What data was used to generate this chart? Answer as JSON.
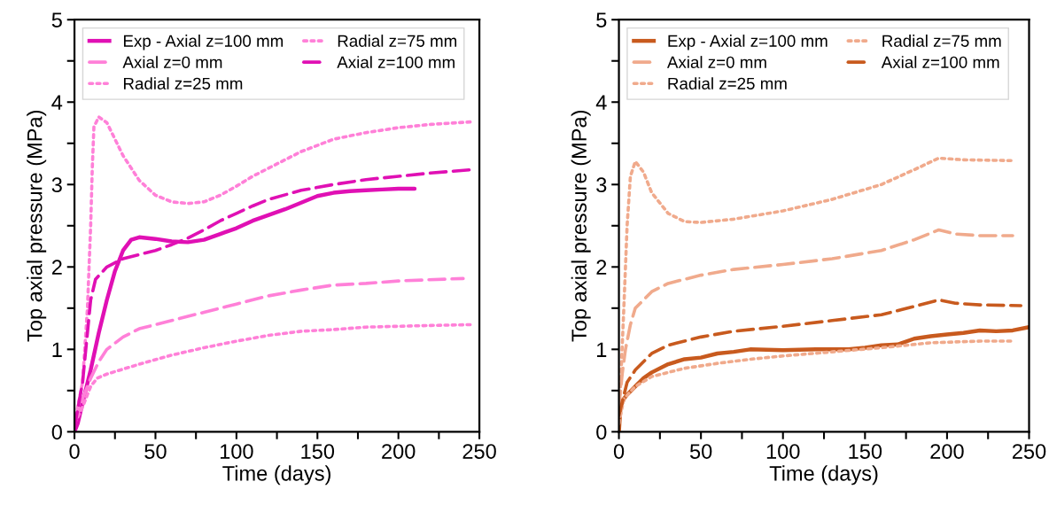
{
  "chart_data": [
    {
      "type": "line",
      "xlabel": "Time (days)",
      "ylabel": "Top axial pressure (MPa)",
      "xlim": [
        0,
        250
      ],
      "ylim": [
        0,
        5
      ],
      "xticks": [
        0,
        {
          "value": 25,
          "label": null
        },
        50,
        {
          "value": 75,
          "label": null
        },
        100,
        {
          "value": 125,
          "label": null
        },
        150,
        {
          "value": 175,
          "label": null
        },
        200,
        {
          "value": 225,
          "label": null
        },
        250
      ],
      "yticks": [
        0,
        {
          "value": 0.5,
          "label": null
        },
        1,
        {
          "value": 1.5,
          "label": null
        },
        2,
        {
          "value": 2.5,
          "label": null
        },
        3,
        {
          "value": 3.5,
          "label": null
        },
        4,
        {
          "value": 4.5,
          "label": null
        },
        5
      ],
      "grid": false,
      "legend": "top left",
      "series": [
        {
          "name": "Exp - Axial z=100 mm",
          "color": "#e010b4",
          "line_style": "solid",
          "x": [
            0,
            2,
            5,
            10,
            15,
            20,
            25,
            30,
            35,
            40,
            50,
            60,
            70,
            80,
            90,
            100,
            110,
            120,
            130,
            140,
            150,
            160,
            170,
            180,
            190,
            200,
            210
          ],
          "values": [
            0,
            0.1,
            0.35,
            0.75,
            1.2,
            1.6,
            1.95,
            2.2,
            2.33,
            2.36,
            2.34,
            2.31,
            2.3,
            2.33,
            2.4,
            2.47,
            2.56,
            2.63,
            2.7,
            2.78,
            2.86,
            2.9,
            2.92,
            2.93,
            2.94,
            2.95,
            2.95
          ]
        },
        {
          "name": "Axial z=0 mm",
          "color": "#ff80d8",
          "line_style": "dashed",
          "x": [
            0,
            5,
            10,
            15,
            20,
            30,
            40,
            60,
            80,
            100,
            120,
            140,
            160,
            180,
            200,
            240
          ],
          "values": [
            0.1,
            0.4,
            0.65,
            0.85,
            1.0,
            1.15,
            1.25,
            1.35,
            1.45,
            1.55,
            1.65,
            1.72,
            1.78,
            1.8,
            1.83,
            1.86
          ]
        },
        {
          "name": "Radial z=25 mm",
          "color": "#ff80d8",
          "line_style": "dotted",
          "x": [
            0,
            5,
            10,
            14,
            20,
            40,
            60,
            80,
            100,
            120,
            140,
            160,
            180,
            200,
            220,
            245
          ],
          "values": [
            0.1,
            0.3,
            0.55,
            0.65,
            0.7,
            0.82,
            0.93,
            1.02,
            1.1,
            1.17,
            1.22,
            1.24,
            1.27,
            1.28,
            1.29,
            1.3
          ]
        },
        {
          "name": "Radial z=75 mm",
          "color": "#ff80d8",
          "line_style": "dotted",
          "x": [
            0,
            5,
            8,
            10,
            11,
            12,
            15,
            20,
            25,
            30,
            40,
            50,
            60,
            70,
            80,
            90,
            100,
            110,
            120,
            140,
            160,
            180,
            200,
            220,
            245
          ],
          "values": [
            0.1,
            0.6,
            1.5,
            2.5,
            3.2,
            3.7,
            3.82,
            3.75,
            3.55,
            3.35,
            3.05,
            2.87,
            2.79,
            2.77,
            2.79,
            2.87,
            2.98,
            3.1,
            3.2,
            3.4,
            3.55,
            3.63,
            3.69,
            3.73,
            3.76
          ]
        },
        {
          "name": "Axial z=100 mm",
          "color": "#e010b4",
          "line_style": "dashed",
          "x": [
            0,
            5,
            8,
            10,
            13,
            20,
            30,
            40,
            50,
            60,
            70,
            80,
            90,
            100,
            110,
            120,
            140,
            160,
            180,
            200,
            220,
            245
          ],
          "values": [
            0.05,
            0.6,
            1.2,
            1.6,
            1.85,
            2.0,
            2.1,
            2.15,
            2.2,
            2.27,
            2.35,
            2.45,
            2.56,
            2.65,
            2.74,
            2.82,
            2.93,
            3.0,
            3.06,
            3.1,
            3.14,
            3.18
          ]
        }
      ]
    },
    {
      "type": "line",
      "xlabel": "Time (days)",
      "ylabel": "Top axial pressure (MPa)",
      "xlim": [
        0,
        250
      ],
      "ylim": [
        0,
        5
      ],
      "xticks": [
        0,
        {
          "value": 25,
          "label": null
        },
        50,
        {
          "value": 75,
          "label": null
        },
        100,
        {
          "value": 125,
          "label": null
        },
        150,
        {
          "value": 175,
          "label": null
        },
        200,
        {
          "value": 225,
          "label": null
        },
        250
      ],
      "yticks": [
        0,
        {
          "value": 0.5,
          "label": null
        },
        1,
        {
          "value": 1.5,
          "label": null
        },
        2,
        {
          "value": 2.5,
          "label": null
        },
        3,
        {
          "value": 3.5,
          "label": null
        },
        4,
        {
          "value": 4.5,
          "label": null
        },
        5
      ],
      "grid": false,
      "legend": "top left",
      "series": [
        {
          "name": "Exp - Axial z=100 mm",
          "color": "#c85a1e",
          "line_style": "solid",
          "x": [
            0,
            1,
            3,
            5,
            10,
            15,
            20,
            30,
            40,
            50,
            60,
            70,
            80,
            100,
            120,
            140,
            150,
            160,
            170,
            180,
            190,
            200,
            210,
            220,
            230,
            240,
            250
          ],
          "values": [
            0,
            0.3,
            0.4,
            0.45,
            0.55,
            0.65,
            0.72,
            0.82,
            0.88,
            0.9,
            0.95,
            0.97,
            1.0,
            0.99,
            1.0,
            1.0,
            1.02,
            1.05,
            1.06,
            1.13,
            1.16,
            1.18,
            1.2,
            1.23,
            1.22,
            1.23,
            1.27
          ]
        },
        {
          "name": "Axial z=0 mm",
          "color": "#f0aa8c",
          "line_style": "dashed",
          "x": [
            0,
            2,
            4,
            7,
            10,
            20,
            30,
            50,
            70,
            100,
            130,
            160,
            180,
            195,
            205,
            220,
            240
          ],
          "values": [
            0.3,
            0.7,
            1.0,
            1.3,
            1.5,
            1.7,
            1.8,
            1.9,
            1.97,
            2.03,
            2.1,
            2.2,
            2.33,
            2.45,
            2.4,
            2.38,
            2.38
          ]
        },
        {
          "name": "Radial z=25 mm",
          "color": "#f0aa8c",
          "line_style": "dotted",
          "x": [
            0,
            3,
            10,
            20,
            40,
            60,
            80,
            100,
            130,
            160,
            190,
            220,
            240
          ],
          "values": [
            0.1,
            0.4,
            0.55,
            0.67,
            0.77,
            0.83,
            0.88,
            0.92,
            0.97,
            1.02,
            1.08,
            1.1,
            1.1
          ]
        },
        {
          "name": "Radial z=75 mm",
          "color": "#f0aa8c",
          "line_style": "dotted",
          "x": [
            0,
            3,
            5,
            7,
            10,
            15,
            20,
            30,
            40,
            50,
            70,
            100,
            130,
            160,
            180,
            195,
            210,
            240
          ],
          "values": [
            0.1,
            1.5,
            2.5,
            3.1,
            3.28,
            3.15,
            2.9,
            2.65,
            2.55,
            2.54,
            2.58,
            2.68,
            2.82,
            3.0,
            3.18,
            3.32,
            3.3,
            3.29
          ]
        },
        {
          "name": "Axial z=100 mm",
          "color": "#c85a1e",
          "line_style": "dashed",
          "x": [
            0,
            5,
            10,
            15,
            20,
            30,
            50,
            70,
            100,
            130,
            160,
            180,
            195,
            205,
            220,
            245
          ],
          "values": [
            0.2,
            0.6,
            0.75,
            0.85,
            0.95,
            1.05,
            1.15,
            1.22,
            1.28,
            1.35,
            1.42,
            1.52,
            1.6,
            1.56,
            1.54,
            1.53
          ]
        }
      ]
    }
  ]
}
